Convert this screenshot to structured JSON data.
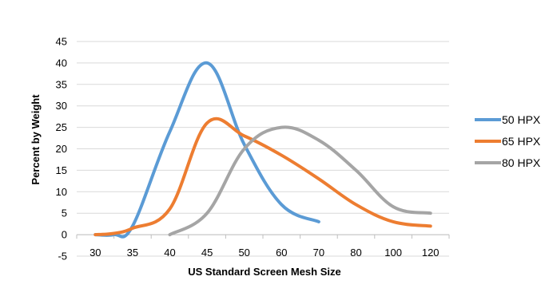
{
  "chart_data": {
    "type": "line",
    "xlabel": "US Standard Screen Mesh Size",
    "ylabel": "Percent by Weight",
    "categories": [
      "30",
      "35",
      "40",
      "45",
      "50",
      "60",
      "70",
      "80",
      "100",
      "120"
    ],
    "ylim": [
      -5,
      45
    ],
    "yticks": [
      -5,
      0,
      5,
      10,
      15,
      20,
      25,
      30,
      35,
      40,
      45
    ],
    "grid": true,
    "legend_position": "right",
    "series": [
      {
        "name": "50 HPX",
        "color": "#5b9bd5",
        "points": [
          [
            0,
            0
          ],
          [
            0.5,
            0
          ],
          [
            1,
            2
          ],
          [
            2,
            24
          ],
          [
            3,
            40
          ],
          [
            4,
            21
          ],
          [
            5,
            7
          ],
          [
            6,
            3
          ]
        ]
      },
      {
        "name": "65 HPX",
        "color": "#ed7d31",
        "points": [
          [
            0,
            0
          ],
          [
            0.5,
            0.3
          ],
          [
            1,
            1.5
          ],
          [
            2,
            6
          ],
          [
            3,
            26
          ],
          [
            4,
            23
          ],
          [
            5,
            18.5
          ],
          [
            6,
            13
          ],
          [
            7,
            7
          ],
          [
            8,
            3
          ],
          [
            9,
            2
          ]
        ]
      },
      {
        "name": "80 HPX",
        "color": "#a5a5a5",
        "points": [
          [
            2,
            0
          ],
          [
            3,
            5
          ],
          [
            4,
            20
          ],
          [
            5,
            25
          ],
          [
            6,
            22
          ],
          [
            7,
            15
          ],
          [
            8,
            6.5
          ],
          [
            9,
            5
          ]
        ]
      }
    ]
  }
}
